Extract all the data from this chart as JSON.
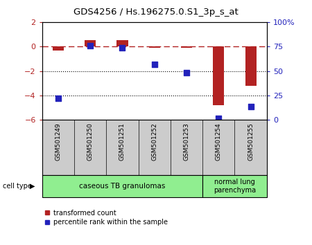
{
  "title": "GDS4256 / Hs.196275.0.S1_3p_s_at",
  "samples": [
    "GSM501249",
    "GSM501250",
    "GSM501251",
    "GSM501252",
    "GSM501253",
    "GSM501254",
    "GSM501255"
  ],
  "transformed_count": [
    -0.3,
    0.55,
    0.5,
    -0.1,
    -0.1,
    -4.8,
    -3.2
  ],
  "percentile_rank": [
    22,
    76,
    74,
    57,
    48,
    2,
    14
  ],
  "left_ylim": [
    -6,
    2
  ],
  "right_ylim": [
    0,
    100
  ],
  "left_yticks": [
    -6,
    -4,
    -2,
    0,
    2
  ],
  "right_yticks": [
    0,
    25,
    50,
    75,
    100
  ],
  "right_yticklabels": [
    "0",
    "25",
    "50",
    "75",
    "100%"
  ],
  "bar_color": "#b22222",
  "dot_color": "#2222bb",
  "hline_y": 0,
  "dotted_lines": [
    -2,
    -4
  ],
  "cell_type_label": "cell type",
  "legend_red_label": "transformed count",
  "legend_blue_label": "percentile rank within the sample",
  "bar_width": 0.35,
  "dot_size": 40,
  "group1_label": "caseous TB granulomas",
  "group2_label": "normal lung\nparenchyma",
  "group_color": "#90ee90",
  "label_bg_color": "#cccccc"
}
